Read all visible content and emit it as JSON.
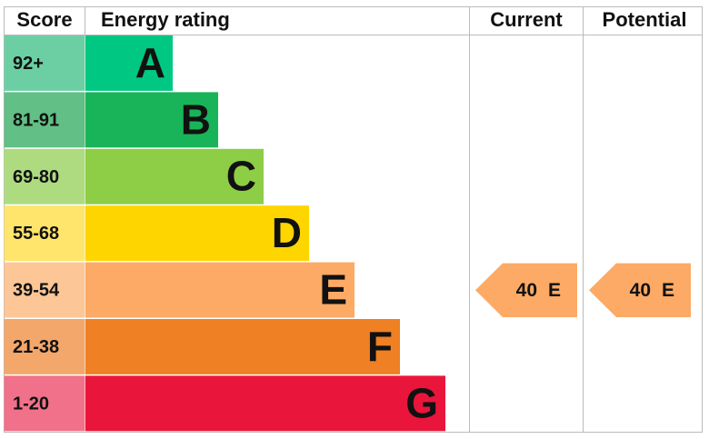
{
  "header": {
    "score": "Score",
    "rating": "Energy rating",
    "current": "Current",
    "potential": "Potential"
  },
  "bands": [
    {
      "score": "92+",
      "letter": "A",
      "color": "#00c781",
      "score_color": "#6ccfa3"
    },
    {
      "score": "81-91",
      "letter": "B",
      "color": "#19b459",
      "score_color": "#62bf85"
    },
    {
      "score": "69-80",
      "letter": "C",
      "color": "#8dce46",
      "score_color": "#aedb80"
    },
    {
      "score": "55-68",
      "letter": "D",
      "color": "#ffd500",
      "score_color": "#ffe56b"
    },
    {
      "score": "39-54",
      "letter": "E",
      "color": "#fcaa65",
      "score_color": "#fdc696"
    },
    {
      "score": "21-38",
      "letter": "F",
      "color": "#ef8023",
      "score_color": "#f4a76a"
    },
    {
      "score": "1-20",
      "letter": "G",
      "color": "#e9153b",
      "score_color": "#f07189"
    }
  ],
  "current": {
    "score": 40,
    "band": "E"
  },
  "potential": {
    "score": 40,
    "band": "E"
  }
}
